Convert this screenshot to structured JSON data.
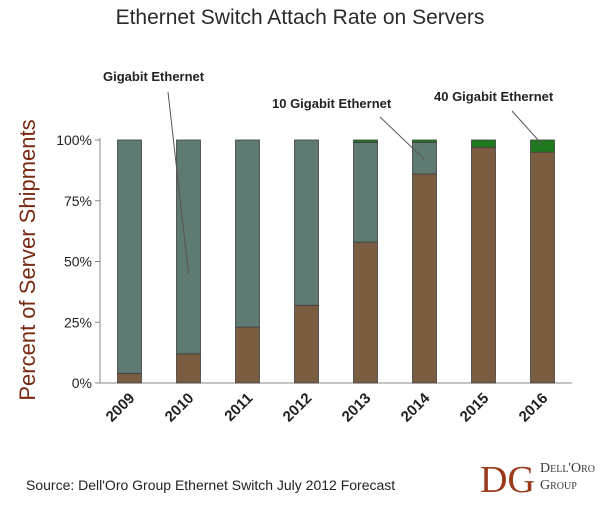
{
  "chart_data": {
    "type": "bar",
    "stacked": true,
    "title": "Ethernet Switch Attach Rate on Servers",
    "ylabel": "Percent of Server Shipments",
    "xlabel": "",
    "ylim": [
      0,
      100
    ],
    "y_ticks": [
      "0%",
      "25%",
      "50%",
      "75%",
      "100%"
    ],
    "categories": [
      "2009",
      "2010",
      "2011",
      "2012",
      "2013",
      "2014",
      "2015",
      "2016"
    ],
    "series": [
      {
        "name": "10 Gigabit Ethernet",
        "color": "#7a5c40",
        "values": [
          4,
          12,
          23,
          32,
          58,
          86,
          97,
          95
        ]
      },
      {
        "name": "Gigabit Ethernet",
        "color": "#5f7a72",
        "values": [
          96,
          88,
          77,
          68,
          41,
          13,
          0,
          0
        ]
      },
      {
        "name": "40 Gigabit Ethernet",
        "color": "#1f7a1f",
        "values": [
          0,
          0,
          0,
          0,
          1,
          1,
          3,
          5
        ]
      }
    ],
    "annotations": [
      "Gigabit Ethernet",
      "10 Gigabit Ethernet",
      "40 Gigabit Ethernet"
    ],
    "grid": false,
    "legend": "annotations"
  },
  "source": "Source: Dell'Oro Group Ethernet Switch July 2012 Forecast",
  "logo": {
    "mark": "DG",
    "line1": "Dell'Oro",
    "line2": "Group"
  }
}
